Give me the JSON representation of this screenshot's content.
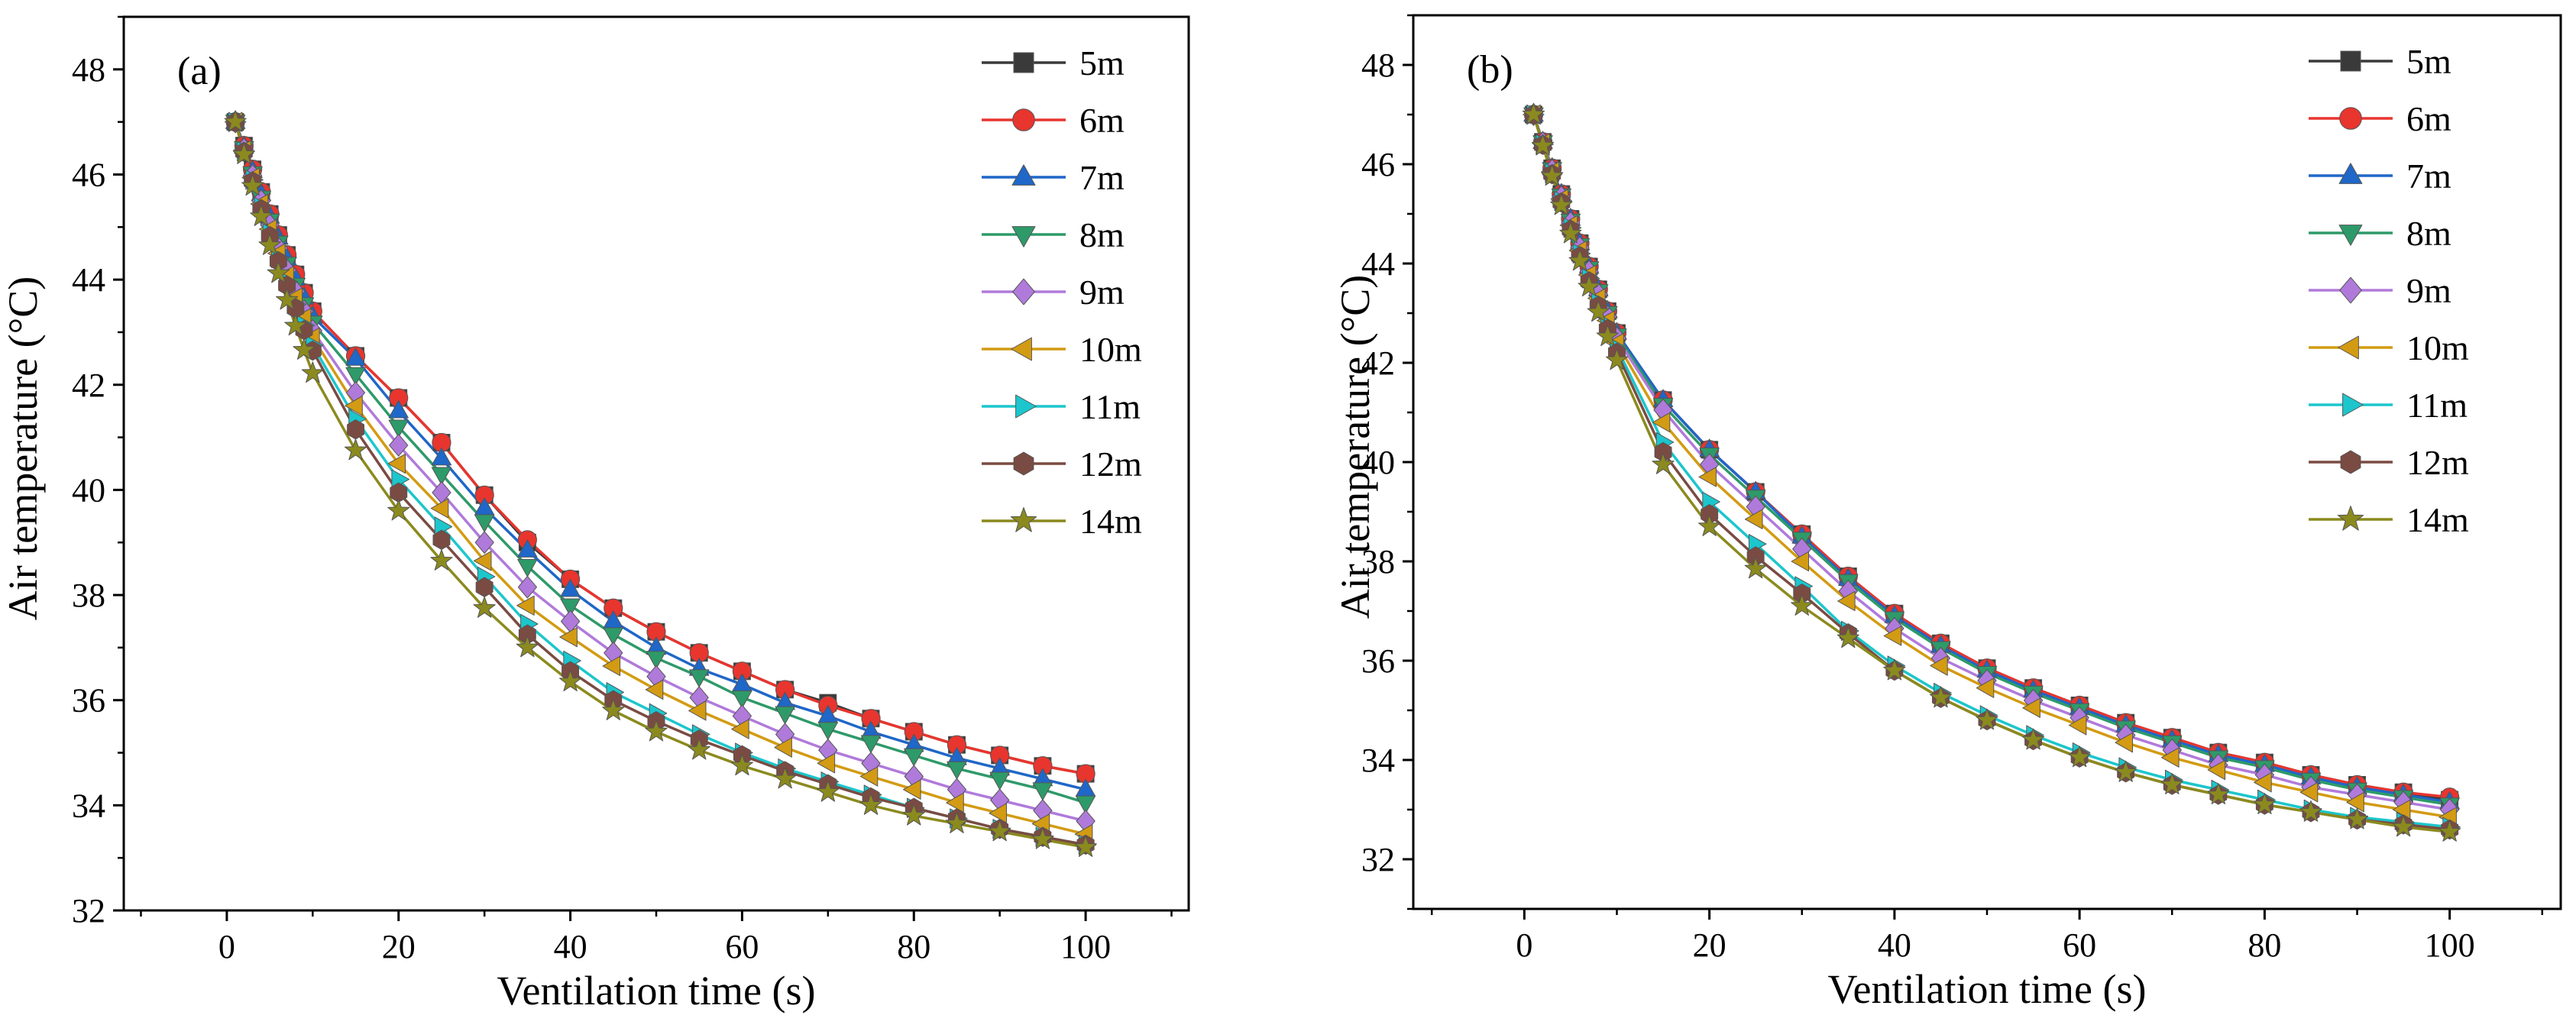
{
  "figure": {
    "description_panels": [
      "(a)",
      "(b)"
    ]
  },
  "chart_data": [
    {
      "type": "line",
      "panel_label": "(a)",
      "xlabel": "Ventilation time (s)",
      "ylabel": "Air temperature (°C)",
      "xlim": [
        -12,
        112
      ],
      "ylim": [
        32,
        49
      ],
      "xticks": [
        0,
        20,
        40,
        60,
        80,
        100
      ],
      "yticks": [
        32,
        34,
        36,
        38,
        40,
        42,
        44,
        46,
        48
      ],
      "grid": false,
      "legend_position": "top-right",
      "x": [
        1,
        2,
        3,
        4,
        5,
        6,
        7,
        8,
        9,
        10,
        15,
        20,
        25,
        30,
        35,
        40,
        45,
        50,
        55,
        60,
        65,
        70,
        75,
        80,
        85,
        90,
        95,
        100
      ],
      "series": [
        {
          "name": "5m",
          "color": "#3a3a3a",
          "marker": "square",
          "values": [
            47.0,
            46.55,
            46.1,
            45.67,
            45.25,
            44.85,
            44.47,
            44.1,
            43.75,
            43.4,
            42.55,
            41.75,
            40.9,
            39.9,
            39.0,
            38.3,
            37.75,
            37.3,
            36.9,
            36.55,
            36.2,
            35.95,
            35.65,
            35.4,
            35.15,
            34.95,
            34.75,
            34.6
          ]
        },
        {
          "name": "6m",
          "color": "#e8352e",
          "marker": "circle",
          "values": [
            47.0,
            46.55,
            46.1,
            45.67,
            45.25,
            44.85,
            44.47,
            44.1,
            43.75,
            43.4,
            42.55,
            41.75,
            40.9,
            39.9,
            39.05,
            38.3,
            37.75,
            37.3,
            36.9,
            36.55,
            36.2,
            35.9,
            35.65,
            35.4,
            35.15,
            34.95,
            34.75,
            34.6
          ]
        },
        {
          "name": "7m",
          "color": "#1f67c8",
          "marker": "triangle-up",
          "values": [
            47.0,
            46.53,
            46.07,
            45.63,
            45.2,
            44.8,
            44.4,
            44.02,
            43.66,
            43.3,
            42.5,
            41.5,
            40.6,
            39.65,
            38.85,
            38.1,
            37.5,
            37.0,
            36.6,
            36.3,
            35.95,
            35.7,
            35.4,
            35.15,
            34.9,
            34.7,
            34.5,
            34.3
          ]
        },
        {
          "name": "8m",
          "color": "#2e9a69",
          "marker": "triangle-down",
          "values": [
            47.0,
            46.5,
            46.02,
            45.56,
            45.12,
            44.7,
            44.3,
            43.9,
            43.53,
            43.18,
            42.2,
            41.2,
            40.3,
            39.4,
            38.55,
            37.8,
            37.25,
            36.8,
            36.45,
            36.05,
            35.75,
            35.45,
            35.2,
            34.95,
            34.7,
            34.5,
            34.3,
            34.05
          ]
        },
        {
          "name": "9m",
          "color": "#b07adb",
          "marker": "diamond",
          "values": [
            47.0,
            46.48,
            45.98,
            45.5,
            45.04,
            44.6,
            44.18,
            43.78,
            43.4,
            43.03,
            41.85,
            40.85,
            39.95,
            39.0,
            38.15,
            37.5,
            36.9,
            36.45,
            36.05,
            35.7,
            35.35,
            35.05,
            34.8,
            34.55,
            34.3,
            34.1,
            33.9,
            33.7
          ]
        },
        {
          "name": "10m",
          "color": "#d39b13",
          "marker": "triangle-left",
          "values": [
            47.0,
            46.46,
            45.94,
            45.44,
            44.96,
            44.5,
            44.07,
            43.66,
            43.27,
            42.9,
            41.6,
            40.5,
            39.65,
            38.65,
            37.8,
            37.2,
            36.65,
            36.2,
            35.8,
            35.45,
            35.1,
            34.8,
            34.55,
            34.3,
            34.05,
            33.85,
            33.65,
            33.45
          ]
        },
        {
          "name": "11m",
          "color": "#1cc6cc",
          "marker": "triangle-right",
          "values": [
            47.0,
            46.44,
            45.9,
            45.38,
            44.88,
            44.41,
            43.96,
            43.53,
            43.13,
            42.75,
            41.35,
            40.2,
            39.3,
            38.35,
            37.45,
            36.75,
            36.15,
            35.75,
            35.35,
            35.0,
            34.7,
            34.45,
            34.2,
            33.95,
            33.75,
            33.55,
            33.4,
            33.25
          ]
        },
        {
          "name": "12m",
          "color": "#7a4b42",
          "marker": "hexagon",
          "values": [
            47.0,
            46.43,
            45.87,
            45.34,
            44.83,
            44.35,
            43.89,
            43.45,
            43.04,
            42.65,
            41.15,
            39.95,
            39.05,
            38.15,
            37.25,
            36.55,
            36.0,
            35.6,
            35.25,
            34.95,
            34.65,
            34.4,
            34.15,
            33.95,
            33.75,
            33.55,
            33.4,
            33.25
          ]
        },
        {
          "name": "14m",
          "color": "#8b8a1e",
          "marker": "star",
          "values": [
            47.0,
            46.38,
            45.78,
            45.2,
            44.65,
            44.12,
            43.61,
            43.12,
            42.66,
            42.22,
            40.75,
            39.6,
            38.65,
            37.75,
            37.0,
            36.35,
            35.8,
            35.4,
            35.05,
            34.75,
            34.5,
            34.25,
            34.0,
            33.8,
            33.65,
            33.5,
            33.35,
            33.2
          ]
        }
      ]
    },
    {
      "type": "line",
      "panel_label": "(b)",
      "xlabel": "Ventilation time (s)",
      "ylabel": "Air temperature (°C)",
      "xlim": [
        -12,
        112
      ],
      "ylim": [
        31,
        49
      ],
      "xticks": [
        0,
        20,
        40,
        60,
        80,
        100
      ],
      "yticks": [
        32,
        34,
        36,
        38,
        40,
        42,
        44,
        46,
        48
      ],
      "grid": false,
      "legend_position": "top-right",
      "x": [
        1,
        2,
        3,
        4,
        5,
        6,
        7,
        8,
        9,
        10,
        15,
        20,
        25,
        30,
        35,
        40,
        45,
        50,
        55,
        60,
        65,
        70,
        75,
        80,
        85,
        90,
        95,
        100
      ],
      "series": [
        {
          "name": "5m",
          "color": "#3a3a3a",
          "marker": "square",
          "values": [
            47.0,
            46.45,
            45.92,
            45.4,
            44.9,
            44.41,
            43.94,
            43.48,
            43.04,
            42.6,
            41.25,
            40.25,
            39.4,
            38.55,
            37.7,
            36.95,
            36.35,
            35.85,
            35.45,
            35.1,
            34.75,
            34.45,
            34.15,
            33.95,
            33.7,
            33.5,
            33.35,
            33.2
          ]
        },
        {
          "name": "6m",
          "color": "#e8352e",
          "marker": "circle",
          "values": [
            47.0,
            46.45,
            45.92,
            45.4,
            44.9,
            44.41,
            43.94,
            43.48,
            43.04,
            42.6,
            41.25,
            40.25,
            39.4,
            38.55,
            37.7,
            36.95,
            36.35,
            35.85,
            35.45,
            35.1,
            34.75,
            34.45,
            34.15,
            33.95,
            33.7,
            33.5,
            33.35,
            33.25
          ]
        },
        {
          "name": "7m",
          "color": "#1f67c8",
          "marker": "triangle-up",
          "values": [
            47.0,
            46.45,
            45.92,
            45.4,
            44.9,
            44.41,
            43.94,
            43.48,
            43.04,
            42.6,
            41.25,
            40.25,
            39.4,
            38.5,
            37.65,
            36.9,
            36.3,
            35.8,
            35.4,
            35.05,
            34.7,
            34.4,
            34.1,
            33.9,
            33.65,
            33.45,
            33.3,
            33.15
          ]
        },
        {
          "name": "8m",
          "color": "#2e9a69",
          "marker": "triangle-down",
          "values": [
            47.0,
            46.44,
            45.9,
            45.37,
            44.86,
            44.37,
            43.9,
            43.44,
            43.0,
            42.55,
            41.15,
            40.15,
            39.3,
            38.45,
            37.6,
            36.85,
            36.25,
            35.75,
            35.35,
            35.0,
            34.65,
            34.35,
            34.05,
            33.85,
            33.6,
            33.4,
            33.25,
            33.1
          ]
        },
        {
          "name": "9m",
          "color": "#b07adb",
          "marker": "diamond",
          "values": [
            47.0,
            46.43,
            45.88,
            45.34,
            44.82,
            44.32,
            43.84,
            43.38,
            42.93,
            42.5,
            41.05,
            39.95,
            39.1,
            38.25,
            37.4,
            36.65,
            36.05,
            35.6,
            35.2,
            34.85,
            34.5,
            34.2,
            33.9,
            33.7,
            33.45,
            33.3,
            33.15,
            33.0
          ]
        },
        {
          "name": "10m",
          "color": "#d39b13",
          "marker": "triangle-left",
          "values": [
            47.0,
            46.42,
            45.85,
            45.3,
            44.77,
            44.26,
            43.77,
            43.3,
            42.85,
            42.4,
            40.8,
            39.7,
            38.85,
            38.0,
            37.2,
            36.5,
            35.9,
            35.45,
            35.05,
            34.7,
            34.35,
            34.05,
            33.8,
            33.55,
            33.35,
            33.15,
            33.0,
            32.85
          ]
        },
        {
          "name": "11m",
          "color": "#1cc6cc",
          "marker": "triangle-right",
          "values": [
            47.0,
            46.4,
            45.82,
            45.26,
            44.72,
            44.2,
            43.7,
            43.22,
            42.76,
            42.3,
            40.4,
            39.2,
            38.35,
            37.5,
            36.6,
            35.9,
            35.35,
            34.9,
            34.5,
            34.15,
            33.85,
            33.6,
            33.4,
            33.2,
            33.0,
            32.85,
            32.75,
            32.65
          ]
        },
        {
          "name": "12m",
          "color": "#7a4b42",
          "marker": "hexagon",
          "values": [
            47.0,
            46.39,
            45.8,
            45.23,
            44.68,
            44.15,
            43.64,
            43.15,
            42.68,
            42.2,
            40.2,
            38.95,
            38.1,
            37.35,
            36.55,
            35.8,
            35.25,
            34.8,
            34.4,
            34.05,
            33.75,
            33.5,
            33.3,
            33.1,
            32.95,
            32.8,
            32.7,
            32.6
          ]
        },
        {
          "name": "14m",
          "color": "#8b8a1e",
          "marker": "star",
          "values": [
            47.0,
            46.37,
            45.76,
            45.17,
            44.6,
            44.05,
            43.53,
            43.02,
            42.53,
            42.05,
            39.95,
            38.7,
            37.85,
            37.1,
            36.45,
            35.8,
            35.25,
            34.8,
            34.4,
            34.05,
            33.75,
            33.5,
            33.3,
            33.1,
            32.95,
            32.8,
            32.65,
            32.55
          ]
        }
      ]
    }
  ]
}
